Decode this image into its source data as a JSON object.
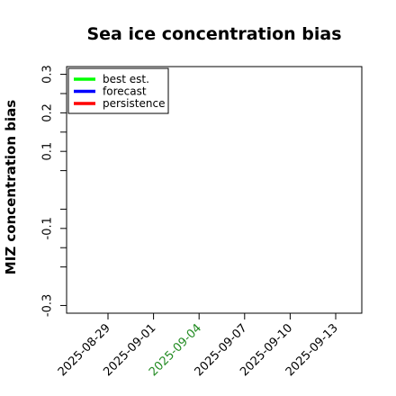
{
  "chart_data": {
    "type": "line",
    "title": "Sea ice concentration bias",
    "xlabel": "",
    "ylabel": "MIZ concentration bias",
    "x_ticks": [
      {
        "label": "2025-08-29",
        "color": "#000000"
      },
      {
        "label": "2025-09-01",
        "color": "#000000"
      },
      {
        "label": "2025-09-04",
        "color": "#228b22"
      },
      {
        "label": "2025-09-07",
        "color": "#000000"
      },
      {
        "label": "2025-09-10",
        "color": "#000000"
      },
      {
        "label": "2025-09-13",
        "color": "#000000"
      }
    ],
    "y_ticks": [
      {
        "value": 0.3,
        "label": "0.3"
      },
      {
        "value": 0.25,
        "label": ""
      },
      {
        "value": 0.2,
        "label": "0.2"
      },
      {
        "value": 0.15,
        "label": ""
      },
      {
        "value": 0.1,
        "label": "0.1"
      },
      {
        "value": 0.05,
        "label": ""
      },
      {
        "value": -0.05,
        "label": ""
      },
      {
        "value": -0.1,
        "label": "-0.1"
      },
      {
        "value": -0.15,
        "label": ""
      },
      {
        "value": -0.2,
        "label": ""
      },
      {
        "value": -0.3,
        "label": "-0.3"
      }
    ],
    "ylim": [
      -0.32,
      0.32
    ],
    "grid": false,
    "legend_position": "top-left",
    "series": [
      {
        "name": "best est.",
        "color": "#00ff00",
        "values": []
      },
      {
        "name": "forecast",
        "color": "#0000ff",
        "values": []
      },
      {
        "name": "persistence",
        "color": "#ff0000",
        "values": []
      }
    ]
  }
}
